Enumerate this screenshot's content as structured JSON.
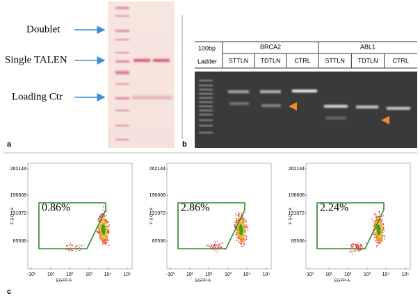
{
  "panel_a": {
    "label": "a",
    "annotations": [
      "Doublet",
      "Single TALEN",
      "Loading Ctr"
    ]
  },
  "panel_b": {
    "label": "b",
    "marker": "100bp",
    "ladder": "Ladder",
    "groups": [
      {
        "name": "BRCA2",
        "lanes": [
          "STTLN",
          "TDTLN",
          "CTRL"
        ]
      },
      {
        "name": "ABL1",
        "lanes": [
          "STTLN",
          "TDTLN",
          "CTRL"
        ]
      }
    ]
  },
  "panel_c": {
    "label": "c",
    "y_axis_label": "FSC-A",
    "x_axis_label": "EGFP-A",
    "yticks": [
      "262144",
      "196608",
      "131072",
      "65536"
    ],
    "xticks": [
      "-10¹",
      "10¹",
      "10²",
      "10³",
      "10⁴",
      "10⁵"
    ],
    "plots": [
      {
        "gate_percent": "0.86%"
      },
      {
        "gate_percent": "2.86%"
      },
      {
        "gate_percent": "2.24%"
      }
    ]
  }
}
